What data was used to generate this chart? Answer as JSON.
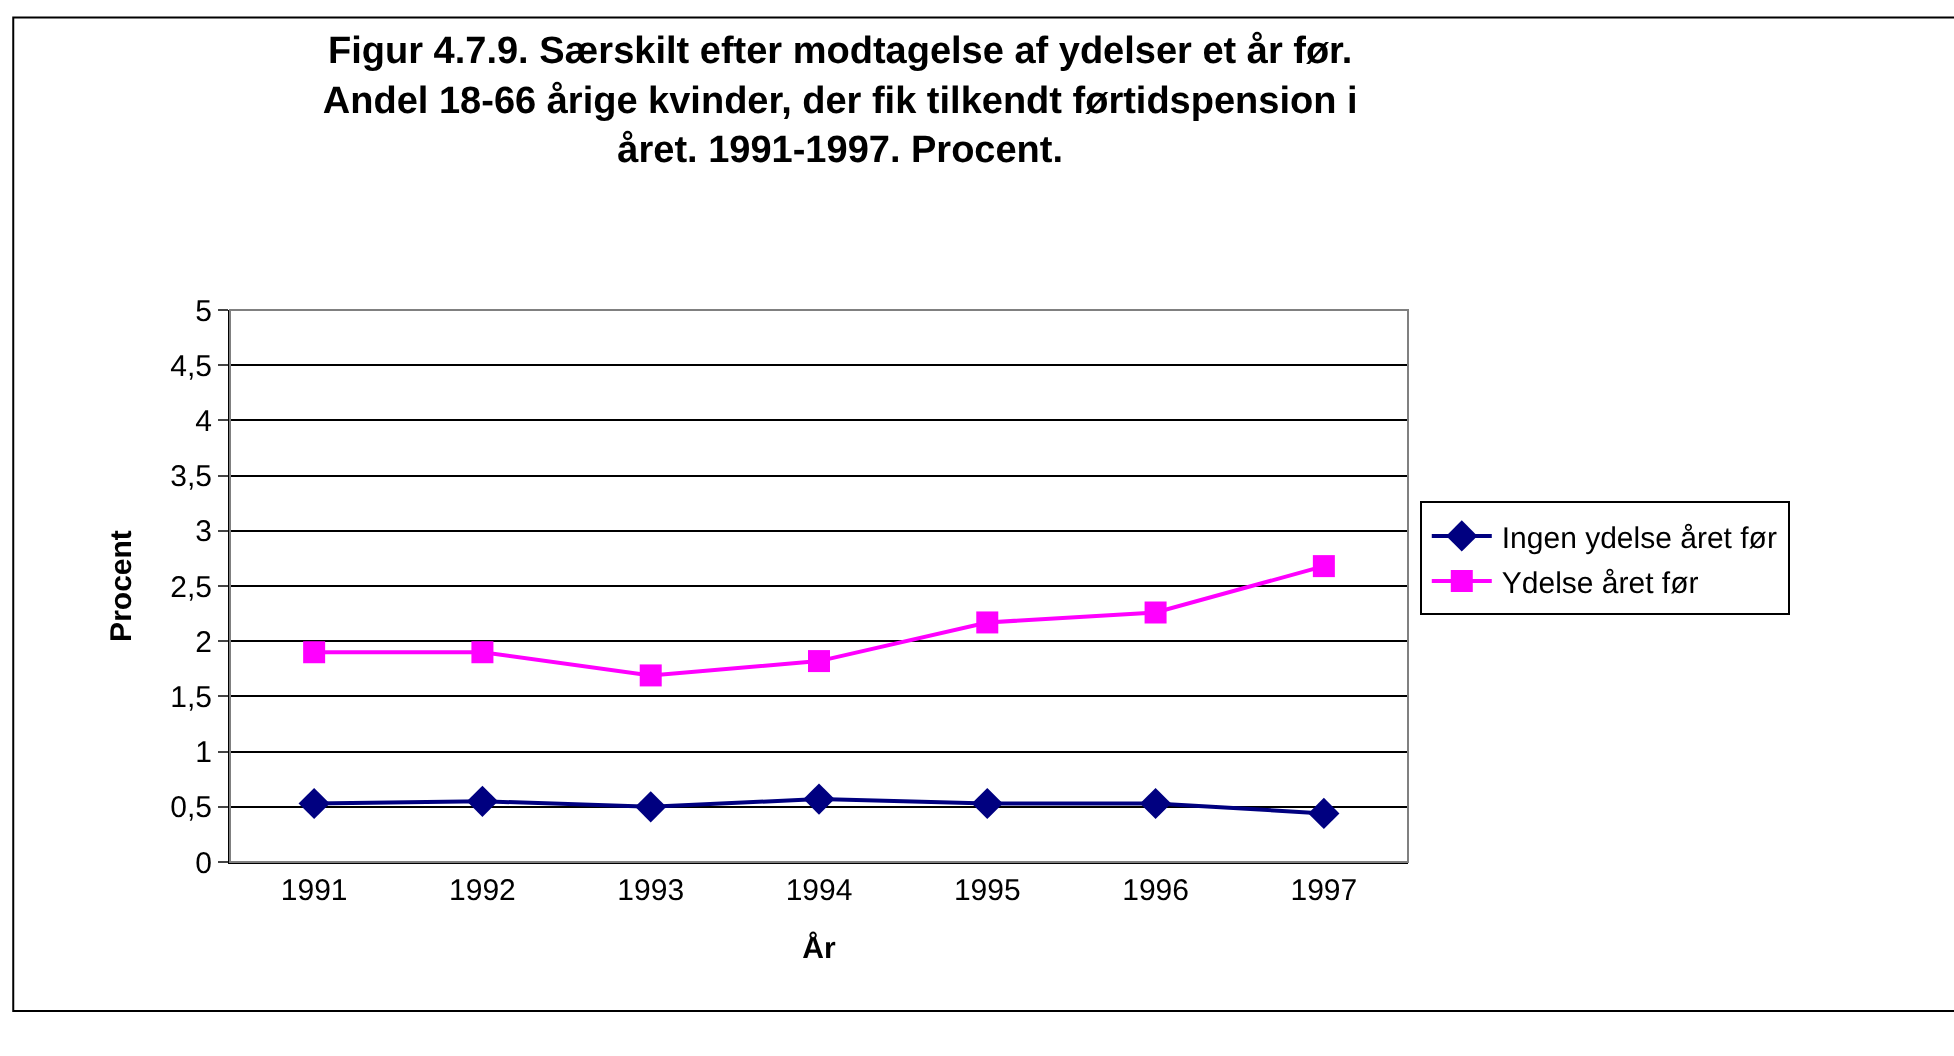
{
  "chart_data": {
    "type": "line",
    "title": "Figur 4.7.9. Særskilt efter modtagelse af ydelser et år før.\nAndel 18-66 årige kvinder, der fik tilkendt førtidspension i\nåret. 1991-1997. Procent.",
    "xlabel": "År",
    "ylabel": "Procent",
    "categories": [
      "1991",
      "1992",
      "1993",
      "1994",
      "1995",
      "1996",
      "1997"
    ],
    "series": [
      {
        "name": "Ingen ydelse året før",
        "color": "#000080",
        "marker": "diamond",
        "values": [
          0.53,
          0.55,
          0.5,
          0.57,
          0.53,
          0.53,
          0.44
        ]
      },
      {
        "name": "Ydelse året før",
        "color": "#ff00ff",
        "marker": "square",
        "values": [
          1.9,
          1.9,
          1.69,
          1.82,
          2.17,
          2.26,
          2.68
        ]
      }
    ],
    "ylim": [
      0,
      5
    ],
    "yticks": [
      {
        "value": 0,
        "label": "0"
      },
      {
        "value": 0.5,
        "label": "0,5"
      },
      {
        "value": 1,
        "label": "1"
      },
      {
        "value": 1.5,
        "label": "1,5"
      },
      {
        "value": 2,
        "label": "2"
      },
      {
        "value": 2.5,
        "label": "2,5"
      },
      {
        "value": 3,
        "label": "3"
      },
      {
        "value": 3.5,
        "label": "3,5"
      },
      {
        "value": 4,
        "label": "4"
      },
      {
        "value": 4.5,
        "label": "4,5"
      },
      {
        "value": 5,
        "label": "5"
      }
    ],
    "grid": "y",
    "legend": "right",
    "line_style": "solid"
  }
}
